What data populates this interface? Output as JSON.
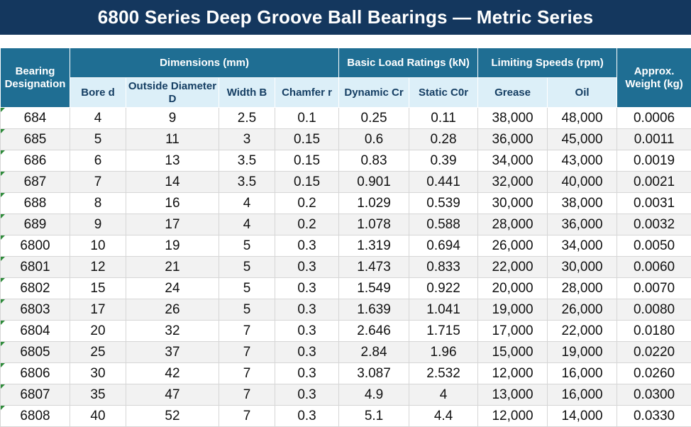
{
  "title": "6800 Series Deep Groove Ball Bearings — Metric Series",
  "headers": {
    "designation": "Bearing Designation",
    "dimensions": "Dimensions (mm)",
    "load_ratings": "Basic Load Ratings (kN)",
    "limiting_speeds": "Limiting Speeds (rpm)",
    "weight": "Approx. Weight (kg)",
    "bore": "Bore d",
    "outside_diameter": "Outside Diameter D",
    "width": "Width B",
    "chamfer": "Chamfer r",
    "dynamic": "Dynamic Cr",
    "static": "Static C0r",
    "grease": "Grease",
    "oil": "Oil"
  },
  "rows": [
    {
      "designation": "684",
      "bore": "4",
      "od": "9",
      "width": "2.5",
      "chamfer": "0.1",
      "dynamic": "0.25",
      "static": "0.11",
      "grease": "38,000",
      "oil": "48,000",
      "weight": "0.0006"
    },
    {
      "designation": "685",
      "bore": "5",
      "od": "11",
      "width": "3",
      "chamfer": "0.15",
      "dynamic": "0.6",
      "static": "0.28",
      "grease": "36,000",
      "oil": "45,000",
      "weight": "0.0011"
    },
    {
      "designation": "686",
      "bore": "6",
      "od": "13",
      "width": "3.5",
      "chamfer": "0.15",
      "dynamic": "0.83",
      "static": "0.39",
      "grease": "34,000",
      "oil": "43,000",
      "weight": "0.0019"
    },
    {
      "designation": "687",
      "bore": "7",
      "od": "14",
      "width": "3.5",
      "chamfer": "0.15",
      "dynamic": "0.901",
      "static": "0.441",
      "grease": "32,000",
      "oil": "40,000",
      "weight": "0.0021"
    },
    {
      "designation": "688",
      "bore": "8",
      "od": "16",
      "width": "4",
      "chamfer": "0.2",
      "dynamic": "1.029",
      "static": "0.539",
      "grease": "30,000",
      "oil": "38,000",
      "weight": "0.0031"
    },
    {
      "designation": "689",
      "bore": "9",
      "od": "17",
      "width": "4",
      "chamfer": "0.2",
      "dynamic": "1.078",
      "static": "0.588",
      "grease": "28,000",
      "oil": "36,000",
      "weight": "0.0032"
    },
    {
      "designation": "6800",
      "bore": "10",
      "od": "19",
      "width": "5",
      "chamfer": "0.3",
      "dynamic": "1.319",
      "static": "0.694",
      "grease": "26,000",
      "oil": "34,000",
      "weight": "0.0050"
    },
    {
      "designation": "6801",
      "bore": "12",
      "od": "21",
      "width": "5",
      "chamfer": "0.3",
      "dynamic": "1.473",
      "static": "0.833",
      "grease": "22,000",
      "oil": "30,000",
      "weight": "0.0060"
    },
    {
      "designation": "6802",
      "bore": "15",
      "od": "24",
      "width": "5",
      "chamfer": "0.3",
      "dynamic": "1.549",
      "static": "0.922",
      "grease": "20,000",
      "oil": "28,000",
      "weight": "0.0070"
    },
    {
      "designation": "6803",
      "bore": "17",
      "od": "26",
      "width": "5",
      "chamfer": "0.3",
      "dynamic": "1.639",
      "static": "1.041",
      "grease": "19,000",
      "oil": "26,000",
      "weight": "0.0080"
    },
    {
      "designation": "6804",
      "bore": "20",
      "od": "32",
      "width": "7",
      "chamfer": "0.3",
      "dynamic": "2.646",
      "static": "1.715",
      "grease": "17,000",
      "oil": "22,000",
      "weight": "0.0180"
    },
    {
      "designation": "6805",
      "bore": "25",
      "od": "37",
      "width": "7",
      "chamfer": "0.3",
      "dynamic": "2.84",
      "static": "1.96",
      "grease": "15,000",
      "oil": "19,000",
      "weight": "0.0220"
    },
    {
      "designation": "6806",
      "bore": "30",
      "od": "42",
      "width": "7",
      "chamfer": "0.3",
      "dynamic": "3.087",
      "static": "2.532",
      "grease": "12,000",
      "oil": "16,000",
      "weight": "0.0260"
    },
    {
      "designation": "6807",
      "bore": "35",
      "od": "47",
      "width": "7",
      "chamfer": "0.3",
      "dynamic": "4.9",
      "static": "4",
      "grease": "13,000",
      "oil": "16,000",
      "weight": "0.0300"
    },
    {
      "designation": "6808",
      "bore": "40",
      "od": "52",
      "width": "7",
      "chamfer": "0.3",
      "dynamic": "5.1",
      "static": "4.4",
      "grease": "12,000",
      "oil": "14,000",
      "weight": "0.0330"
    }
  ]
}
